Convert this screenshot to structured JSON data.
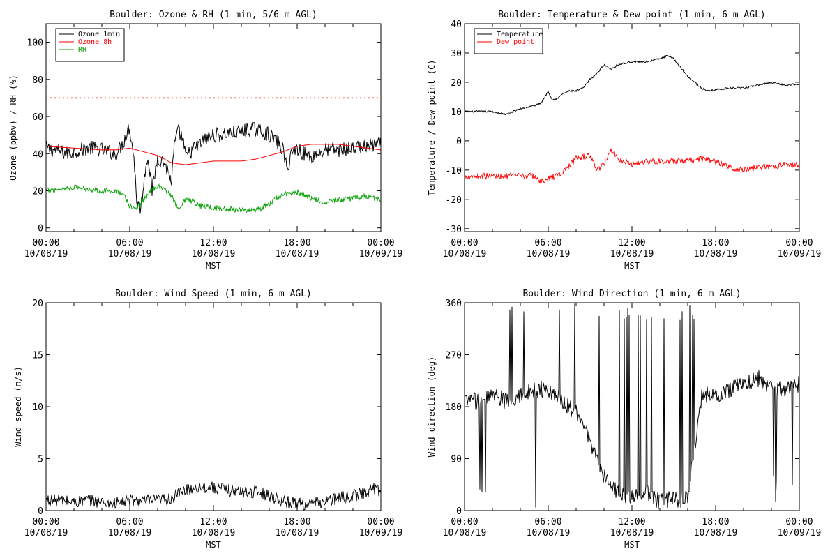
{
  "page": {
    "background": "#ffffff"
  },
  "chart_data": [
    {
      "id": "ozone_rh",
      "type": "line",
      "title": "Boulder: Ozone & RH (1 min, 5/6 m AGL)",
      "xlabel": "MST",
      "ylabel": "Ozone (ppbv) / RH (%)",
      "xlim": [
        0,
        24
      ],
      "ylim": [
        -2,
        110
      ],
      "yticks": [
        0,
        20,
        40,
        60,
        80,
        100
      ],
      "xticks": [
        {
          "hour": 0,
          "time": "00:00",
          "date": "10/08/19"
        },
        {
          "hour": 6,
          "time": "06:00",
          "date": "10/08/19"
        },
        {
          "hour": 12,
          "time": "12:00",
          "date": "10/08/19"
        },
        {
          "hour": 18,
          "time": "18:00",
          "date": "10/08/19"
        },
        {
          "hour": 24,
          "time": "00:00",
          "date": "10/09/19"
        }
      ],
      "grid": false,
      "legend_position": "top-left",
      "reference_lines": [
        {
          "y": 70,
          "color": "#ff0000",
          "style": "dotted"
        }
      ],
      "series": [
        {
          "name": "Ozone 1min",
          "color": "#000000",
          "noise": 4,
          "x": [
            0,
            0.5,
            1,
            1.5,
            2,
            2.5,
            3,
            3.5,
            4,
            4.5,
            5,
            5.5,
            5.8,
            6,
            6.3,
            6.5,
            6.8,
            7,
            7.3,
            7.6,
            8,
            8.5,
            9,
            9.2,
            9.5,
            9.8,
            10,
            10.5,
            11,
            11.5,
            12,
            12.5,
            13,
            13.5,
            14,
            14.5,
            15,
            15.5,
            16,
            16.5,
            17,
            17.3,
            17.5,
            18,
            18.5,
            19,
            19.5,
            20,
            21,
            22,
            23,
            24
          ],
          "y": [
            43,
            42,
            41,
            40,
            41,
            42,
            43,
            43,
            42,
            41,
            40,
            45,
            52,
            54,
            38,
            15,
            10,
            25,
            40,
            20,
            38,
            35,
            25,
            45,
            52,
            48,
            38,
            42,
            45,
            48,
            50,
            50,
            51,
            51,
            52,
            53,
            53,
            52,
            50,
            47,
            42,
            30,
            40,
            43,
            40,
            38,
            40,
            42,
            42,
            43,
            44,
            45
          ]
        },
        {
          "name": "Ozone 8h",
          "color": "#ff0000",
          "noise": 0,
          "x": [
            0,
            2,
            4,
            5,
            6,
            7,
            8,
            9,
            10,
            11,
            12,
            13,
            14,
            15,
            16,
            17,
            18,
            19,
            20,
            21,
            22,
            23,
            24
          ],
          "y": [
            44,
            43,
            42,
            42,
            43,
            41,
            39,
            35,
            34,
            35,
            36,
            36,
            36,
            37,
            39,
            41,
            44,
            45,
            45,
            45,
            44,
            43,
            42
          ]
        },
        {
          "name": "RH",
          "color": "#00a000",
          "noise": 1.5,
          "x": [
            0,
            1,
            2,
            3,
            4,
            5,
            5.5,
            6,
            6.5,
            7,
            7.5,
            8,
            8.5,
            9,
            9.3,
            9.6,
            10,
            10.5,
            11,
            12,
            13,
            14,
            15,
            16,
            16.5,
            17,
            18,
            18.5,
            19,
            19.5,
            20,
            21,
            22,
            23,
            24
          ],
          "y": [
            20,
            21,
            22,
            21,
            20,
            20,
            18,
            12,
            10,
            15,
            20,
            23,
            21,
            17,
            12,
            10,
            15,
            14,
            12,
            11,
            10,
            10,
            9,
            13,
            16,
            18,
            19,
            18,
            16,
            15,
            14,
            15,
            16,
            17,
            15
          ]
        }
      ]
    },
    {
      "id": "temp_dew",
      "type": "line",
      "title": "Boulder: Temperature & Dew point (1 min, 6 m AGL)",
      "xlabel": "MST",
      "ylabel": "Temperature / Dew point (C)",
      "xlim": [
        0,
        24
      ],
      "ylim": [
        -31,
        40
      ],
      "yticks": [
        -30,
        -20,
        -10,
        0,
        10,
        20,
        30,
        40
      ],
      "xticks": [
        {
          "hour": 0,
          "time": "00:00",
          "date": "10/08/19"
        },
        {
          "hour": 6,
          "time": "06:00",
          "date": "10/08/19"
        },
        {
          "hour": 12,
          "time": "12:00",
          "date": "10/08/19"
        },
        {
          "hour": 18,
          "time": "18:00",
          "date": "10/08/19"
        },
        {
          "hour": 24,
          "time": "00:00",
          "date": "10/09/19"
        }
      ],
      "grid": false,
      "legend_position": "top-left",
      "series": [
        {
          "name": "Temperature",
          "color": "#000000",
          "noise": 0.3,
          "x": [
            0,
            1,
            2,
            3,
            4,
            5,
            5.5,
            6,
            6.3,
            6.7,
            7,
            7.5,
            8,
            8.5,
            9,
            9.5,
            10,
            10.5,
            11,
            12,
            13,
            14,
            14.5,
            15,
            16,
            17,
            17.5,
            18,
            19,
            20,
            21,
            22,
            23,
            24
          ],
          "y": [
            10,
            10,
            10,
            9,
            11,
            12,
            13,
            17,
            14,
            14.5,
            16,
            17,
            17,
            18,
            21,
            23,
            26,
            24.5,
            26,
            27,
            27,
            28,
            29,
            28,
            22,
            18,
            17,
            17.5,
            18,
            18,
            19,
            20,
            19,
            19.5
          ]
        },
        {
          "name": "Dew point",
          "color": "#ff0000",
          "noise": 1,
          "x": [
            0,
            1,
            2,
            3,
            4,
            5,
            5.5,
            6,
            6.5,
            7,
            8,
            9,
            9.5,
            10,
            10.5,
            11,
            12,
            13,
            14,
            15,
            16,
            17,
            18,
            19,
            20,
            21,
            22,
            23,
            24
          ],
          "y": [
            -12,
            -12,
            -12,
            -12,
            -12,
            -12,
            -14,
            -13,
            -12,
            -11,
            -6,
            -5,
            -10,
            -8,
            -3,
            -6,
            -8,
            -7,
            -7,
            -7,
            -7,
            -6,
            -7,
            -9,
            -10,
            -9,
            -9,
            -8,
            -8
          ]
        }
      ]
    },
    {
      "id": "wind_speed",
      "type": "line",
      "title": "Boulder: Wind Speed (1 min, 6 m AGL)",
      "xlabel": "MST",
      "ylabel": "Wind speed (m/s)",
      "xlim": [
        0,
        24
      ],
      "ylim": [
        0,
        20
      ],
      "yticks": [
        0,
        5,
        10,
        15,
        20
      ],
      "xticks": [
        {
          "hour": 0,
          "time": "00:00",
          "date": "10/08/19"
        },
        {
          "hour": 6,
          "time": "06:00",
          "date": "10/08/19"
        },
        {
          "hour": 12,
          "time": "12:00",
          "date": "10/08/19"
        },
        {
          "hour": 18,
          "time": "18:00",
          "date": "10/08/19"
        },
        {
          "hour": 24,
          "time": "00:00",
          "date": "10/09/19"
        }
      ],
      "grid": false,
      "series": [
        {
          "color": "#000000",
          "noise": 0.6,
          "x": [
            0,
            1,
            2,
            3,
            4,
            5,
            6,
            7,
            8,
            9,
            10,
            11,
            12,
            13,
            14,
            15,
            16,
            17,
            18,
            19,
            20,
            21,
            22,
            23,
            23.5,
            24
          ],
          "y": [
            1.0,
            1.0,
            0.8,
            1.0,
            0.8,
            0.7,
            1.0,
            0.9,
            1.0,
            1.2,
            2.0,
            2.3,
            2.2,
            2.0,
            1.8,
            1.8,
            1.5,
            0.9,
            0.7,
            0.6,
            0.9,
            1.2,
            1.4,
            1.8,
            2.2,
            1.8
          ]
        }
      ]
    },
    {
      "id": "wind_dir",
      "type": "line",
      "title": "Boulder: Wind Direction (1 min, 6 m AGL)",
      "xlabel": "MST",
      "ylabel": "Wind direction (deg)",
      "xlim": [
        0,
        24
      ],
      "ylim": [
        0,
        360
      ],
      "yticks": [
        0,
        90,
        180,
        270,
        360
      ],
      "xticks": [
        {
          "hour": 0,
          "time": "00:00",
          "date": "10/08/19"
        },
        {
          "hour": 6,
          "time": "06:00",
          "date": "10/08/19"
        },
        {
          "hour": 12,
          "time": "12:00",
          "date": "10/08/19"
        },
        {
          "hour": 18,
          "time": "18:00",
          "date": "10/08/19"
        },
        {
          "hour": 24,
          "time": "00:00",
          "date": "10/09/19"
        }
      ],
      "grid": false,
      "series": [
        {
          "color": "#000000",
          "noise": 15,
          "wrap_spikes": true,
          "x": [
            0,
            1,
            2,
            3,
            4,
            5,
            6,
            7,
            8,
            9,
            10,
            11,
            12,
            13,
            14,
            15,
            16,
            17,
            18,
            19,
            20,
            21,
            22,
            23,
            24
          ],
          "y": [
            190,
            190,
            200,
            190,
            200,
            210,
            210,
            190,
            170,
            120,
            60,
            30,
            20,
            30,
            15,
            20,
            20,
            200,
            200,
            210,
            220,
            230,
            210,
            210,
            220
          ]
        }
      ]
    }
  ]
}
